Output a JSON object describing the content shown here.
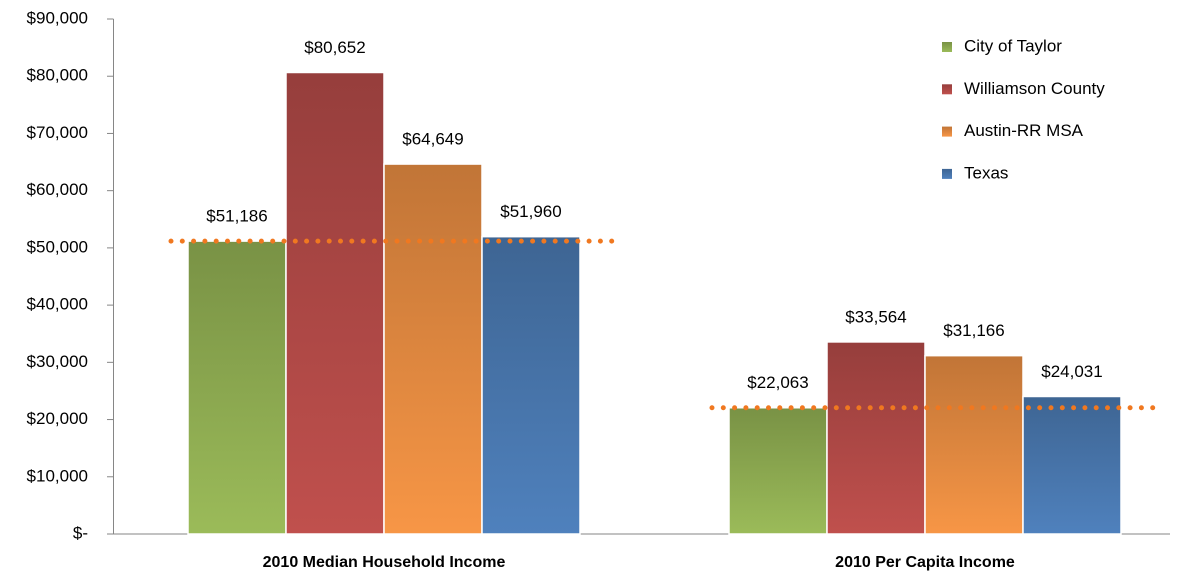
{
  "chart_data": {
    "type": "bar",
    "categories": [
      "2010 Median Household Income",
      "2010 Per Capita Income"
    ],
    "series": [
      {
        "name": "City of Taylor",
        "color": "#9bbb59",
        "values": [
          51186,
          22063
        ],
        "value_labels": [
          "$51,186",
          "$22,063"
        ]
      },
      {
        "name": "Williamson County",
        "color": "#c0504d",
        "values": [
          80652,
          33564
        ],
        "value_labels": [
          "$80,652",
          "$33,564"
        ]
      },
      {
        "name": "Austin-RR MSA",
        "color": "#f79646",
        "values": [
          64649,
          31166
        ],
        "value_labels": [
          "$64,649",
          "$31,166"
        ]
      },
      {
        "name": "Texas",
        "color": "#4f81bd",
        "values": [
          51960,
          24031
        ],
        "value_labels": [
          "$51,960",
          "$24,031"
        ]
      }
    ],
    "ylim": [
      0,
      90000
    ],
    "yticks": [
      {
        "value": 0,
        "label": "$-"
      },
      {
        "value": 10000,
        "label": "$10,000"
      },
      {
        "value": 20000,
        "label": "$20,000"
      },
      {
        "value": 30000,
        "label": "$30,000"
      },
      {
        "value": 40000,
        "label": "$40,000"
      },
      {
        "value": 50000,
        "label": "$50,000"
      },
      {
        "value": 60000,
        "label": "$60,000"
      },
      {
        "value": 70000,
        "label": "$70,000"
      },
      {
        "value": 80000,
        "label": "$80,000"
      },
      {
        "value": 90000,
        "label": "$90,000"
      }
    ],
    "legend": "top-right",
    "reference_line_color": "#f07820"
  }
}
